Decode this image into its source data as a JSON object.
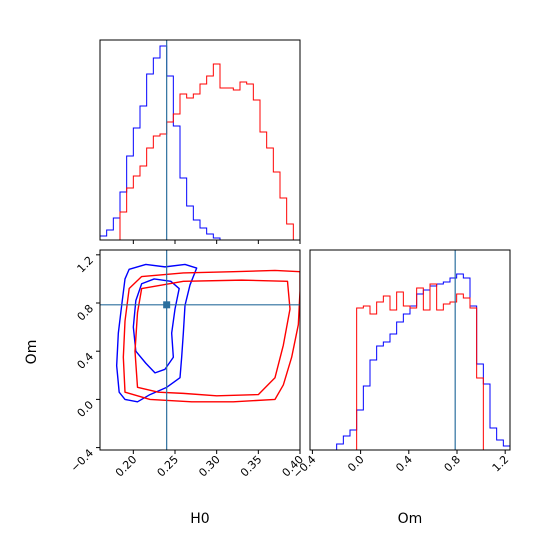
{
  "chart_data": [
    {
      "type": "histogram",
      "panel": "H0 marginal",
      "xlim": [
        0.16,
        0.4
      ],
      "x_edges": [
        0.16,
        0.168,
        0.176,
        0.184,
        0.192,
        0.2,
        0.208,
        0.216,
        0.224,
        0.232,
        0.24,
        0.248,
        0.256,
        0.264,
        0.272,
        0.28,
        0.288,
        0.296,
        0.304,
        0.312,
        0.32,
        0.328,
        0.336,
        0.344,
        0.352,
        0.36,
        0.368,
        0.376,
        0.384,
        0.392,
        0.4
      ],
      "truth": 0.24,
      "series": [
        {
          "color": "#0000ff",
          "values": [
            0.02,
            0.05,
            0.11,
            0.24,
            0.42,
            0.56,
            0.67,
            0.83,
            0.91,
            0.97,
            0.82,
            0.57,
            0.31,
            0.17,
            0.1,
            0.06,
            0.03,
            0.01,
            0.0,
            0.0,
            0,
            0,
            0,
            0,
            0,
            0,
            0,
            0,
            0,
            0
          ]
        },
        {
          "color": "#ff0000",
          "values": [
            0,
            0,
            0,
            0.14,
            0.26,
            0.32,
            0.37,
            0.46,
            0.52,
            0.53,
            0.59,
            0.63,
            0.73,
            0.71,
            0.73,
            0.78,
            0.82,
            0.88,
            0.76,
            0.76,
            0.75,
            0.79,
            0.78,
            0.7,
            0.54,
            0.46,
            0.34,
            0.21,
            0.08,
            0
          ]
        }
      ]
    },
    {
      "type": "contour",
      "panel": "H0 vs Om",
      "xlabel": "H0",
      "ylabel": "Om",
      "xlim": [
        0.16,
        0.4
      ],
      "ylim": [
        -0.42,
        1.24
      ],
      "xticks": [
        "0.20",
        "0.25",
        "0.30",
        "0.35",
        "0.40"
      ],
      "yticks": [
        "−0.4",
        "0.0",
        "0.4",
        "0.8",
        "1.2"
      ],
      "xtick_values": [
        0.2,
        0.25,
        0.3,
        0.35,
        0.4
      ],
      "ytick_values": [
        -0.4,
        0.0,
        0.4,
        0.8,
        1.2
      ],
      "truth": [
        0.24,
        0.785
      ],
      "series": [
        {
          "color": "#0000ff",
          "contours": [
            [
              [
                0.183,
                0.06
              ],
              [
                0.18,
                0.28
              ],
              [
                0.182,
                0.55
              ],
              [
                0.186,
                0.78
              ],
              [
                0.19,
                1.0
              ],
              [
                0.195,
                1.08
              ],
              [
                0.215,
                1.12
              ],
              [
                0.238,
                1.1
              ],
              [
                0.262,
                1.12
              ],
              [
                0.276,
                1.09
              ],
              [
                0.268,
                0.95
              ],
              [
                0.262,
                0.78
              ],
              [
                0.26,
                0.55
              ],
              [
                0.258,
                0.35
              ],
              [
                0.256,
                0.18
              ],
              [
                0.24,
                0.1
              ],
              [
                0.22,
                0.04
              ],
              [
                0.205,
                -0.02
              ],
              [
                0.19,
                0.0
              ],
              [
                0.183,
                0.06
              ]
            ],
            [
              [
                0.203,
                0.4
              ],
              [
                0.2,
                0.6
              ],
              [
                0.203,
                0.82
              ],
              [
                0.21,
                0.96
              ],
              [
                0.225,
                1.0
              ],
              [
                0.245,
                0.98
              ],
              [
                0.255,
                0.92
              ],
              [
                0.25,
                0.75
              ],
              [
                0.246,
                0.55
              ],
              [
                0.248,
                0.35
              ],
              [
                0.238,
                0.25
              ],
              [
                0.226,
                0.22
              ],
              [
                0.215,
                0.3
              ],
              [
                0.203,
                0.4
              ]
            ]
          ]
        },
        {
          "color": "#ff0000",
          "contours": [
            [
              [
                0.19,
                0.06
              ],
              [
                0.188,
                0.35
              ],
              [
                0.19,
                0.65
              ],
              [
                0.195,
                0.92
              ],
              [
                0.21,
                1.02
              ],
              [
                0.26,
                1.05
              ],
              [
                0.32,
                1.06
              ],
              [
                0.37,
                1.07
              ],
              [
                0.4,
                1.06
              ],
              [
                0.4,
                0.9
              ],
              [
                0.398,
                0.62
              ],
              [
                0.39,
                0.35
              ],
              [
                0.38,
                0.12
              ],
              [
                0.37,
                0.0
              ],
              [
                0.32,
                -0.02
              ],
              [
                0.27,
                -0.02
              ],
              [
                0.22,
                0.0
              ],
              [
                0.19,
                0.06
              ]
            ],
            [
              [
                0.205,
                0.1
              ],
              [
                0.202,
                0.4
              ],
              [
                0.205,
                0.72
              ],
              [
                0.21,
                0.92
              ],
              [
                0.26,
                0.98
              ],
              [
                0.33,
                0.99
              ],
              [
                0.385,
                0.98
              ],
              [
                0.388,
                0.75
              ],
              [
                0.38,
                0.45
              ],
              [
                0.37,
                0.18
              ],
              [
                0.35,
                0.04
              ],
              [
                0.3,
                0.03
              ],
              [
                0.26,
                0.05
              ],
              [
                0.23,
                0.06
              ],
              [
                0.205,
                0.1
              ]
            ]
          ]
        }
      ]
    },
    {
      "type": "histogram",
      "panel": "Om marginal",
      "xlabel": "Om",
      "xlim": [
        -0.42,
        1.24
      ],
      "xticks": [
        "−0.4",
        "0.0",
        "0.4",
        "0.8",
        "1.2"
      ],
      "xtick_values": [
        -0.4,
        0.0,
        0.4,
        0.8,
        1.2
      ],
      "x_edges": [
        -0.42,
        -0.3647,
        -0.3093,
        -0.254,
        -0.1987,
        -0.1433,
        -0.088,
        -0.0327,
        0.0227,
        0.078,
        0.1333,
        0.1887,
        0.244,
        0.2993,
        0.3547,
        0.41,
        0.4653,
        0.5207,
        0.576,
        0.6313,
        0.6867,
        0.742,
        0.7973,
        0.8527,
        0.908,
        0.9633,
        1.0187,
        1.074,
        1.1293,
        1.1847,
        1.24
      ],
      "truth": 0.785,
      "series": [
        {
          "color": "#0000ff",
          "values": [
            0,
            0,
            0,
            0,
            0.03,
            0.07,
            0.1,
            0.2,
            0.32,
            0.45,
            0.52,
            0.54,
            0.58,
            0.64,
            0.68,
            0.72,
            0.78,
            0.8,
            0.82,
            0.83,
            0.84,
            0.86,
            0.88,
            0.86,
            0.72,
            0.43,
            0.33,
            0.11,
            0.05,
            0.02
          ]
        },
        {
          "color": "#ff0000",
          "values": [
            0,
            0,
            0,
            0,
            0,
            0,
            0,
            0.71,
            0.72,
            0.68,
            0.74,
            0.77,
            0.7,
            0.79,
            0.72,
            0.71,
            0.81,
            0.7,
            0.83,
            0.7,
            0.73,
            0.74,
            0.78,
            0.76,
            0.71,
            0.36,
            0,
            0,
            0,
            0
          ]
        }
      ]
    }
  ]
}
